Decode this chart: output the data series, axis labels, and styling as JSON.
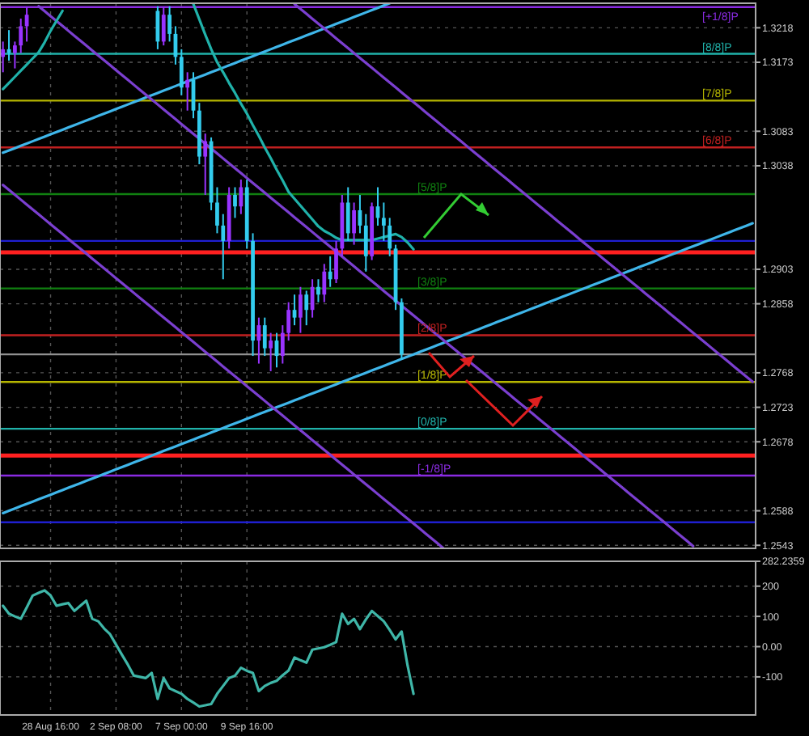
{
  "chart_data": [
    {
      "type": "candlestick",
      "categories": [
        null,
        null,
        null,
        null,
        null,
        null,
        null,
        null,
        null,
        null,
        null,
        null,
        null,
        null,
        null,
        null,
        null,
        null,
        null,
        null,
        null,
        null,
        null,
        null,
        null,
        null,
        null,
        null,
        null,
        null,
        null,
        null,
        null,
        null,
        null,
        null,
        null,
        null,
        null,
        null,
        null,
        null,
        null,
        null,
        null,
        null,
        null,
        null,
        null,
        null,
        null,
        null,
        null,
        null,
        null,
        null,
        null,
        null,
        null,
        null,
        null,
        null,
        null,
        null,
        null,
        null,
        null,
        null,
        null,
        null,
        null,
        null,
        null,
        null,
        null,
        null,
        null,
        null,
        null,
        null,
        null,
        null,
        null,
        null,
        null,
        null,
        null,
        null,
        null,
        null,
        null,
        null,
        null,
        null,
        null,
        null,
        null,
        null,
        null,
        null,
        null,
        null,
        null,
        null,
        null,
        null,
        null,
        null,
        null,
        null,
        null,
        null,
        null,
        null,
        null,
        null,
        null,
        null,
        null,
        null,
        null,
        null,
        null,
        null,
        null,
        null,
        null
      ],
      "ohlc": [
        [
          1.318,
          1.32,
          1.316,
          1.319
        ],
        [
          1.319,
          1.3215,
          1.3175,
          1.3185
        ],
        [
          1.3185,
          1.32,
          1.3165,
          1.3195
        ],
        [
          1.3195,
          1.323,
          1.3185,
          1.322
        ],
        [
          1.322,
          1.3245,
          1.32,
          1.3235
        ],
        null,
        null,
        null,
        null,
        null,
        null,
        null,
        null,
        null,
        null,
        null,
        null,
        null,
        null,
        null,
        null,
        null,
        null,
        null,
        null,
        null,
        [
          1.324,
          1.3246,
          1.319,
          1.32
        ],
        [
          1.32,
          1.3245,
          1.3195,
          1.3235
        ],
        [
          1.3235,
          1.3246,
          1.32,
          1.321
        ],
        [
          1.321,
          1.322,
          1.317,
          1.318
        ],
        [
          1.318,
          1.319,
          1.313,
          1.314
        ],
        [
          1.314,
          1.316,
          1.311,
          1.315
        ],
        [
          1.315,
          1.316,
          1.31,
          1.311
        ],
        [
          1.311,
          1.312,
          1.304,
          1.305
        ],
        [
          1.305,
          1.308,
          1.3,
          1.307
        ],
        [
          1.307,
          1.3075,
          1.298,
          1.299
        ],
        [
          1.299,
          1.301,
          1.295,
          1.296
        ],
        [
          1.296,
          1.2975,
          1.289,
          1.294
        ],
        [
          1.294,
          1.301,
          1.293,
          1.3
        ],
        [
          1.3,
          1.301,
          1.297,
          1.2985
        ],
        [
          1.2985,
          1.302,
          1.2975,
          1.301
        ],
        [
          1.301,
          1.302,
          1.293,
          1.294
        ],
        [
          1.294,
          1.295,
          1.279,
          1.281
        ],
        [
          1.281,
          1.284,
          1.278,
          1.283
        ],
        [
          1.283,
          1.284,
          1.279,
          1.28
        ],
        [
          1.28,
          1.282,
          1.277,
          1.281
        ],
        [
          1.281,
          1.282,
          1.2775,
          1.279
        ],
        [
          1.279,
          1.283,
          1.278,
          1.282
        ],
        [
          1.282,
          1.286,
          1.281,
          1.285
        ],
        [
          1.285,
          1.287,
          1.283,
          1.284
        ],
        [
          1.284,
          1.288,
          1.282,
          1.287
        ],
        [
          1.287,
          1.2875,
          1.283,
          1.285
        ],
        [
          1.285,
          1.289,
          1.284,
          1.288
        ],
        [
          1.288,
          1.289,
          1.286,
          1.287
        ],
        [
          1.287,
          1.291,
          1.286,
          1.29
        ],
        [
          1.29,
          1.292,
          1.288,
          1.289
        ],
        [
          1.289,
          1.294,
          1.2885,
          1.293
        ],
        [
          1.293,
          1.3,
          1.292,
          1.299
        ],
        [
          1.299,
          1.301,
          1.294,
          1.295
        ],
        [
          1.295,
          1.299,
          1.2935,
          1.298
        ],
        [
          1.298,
          1.3,
          1.295,
          1.296
        ],
        [
          1.296,
          1.2975,
          1.29,
          1.292
        ],
        [
          1.292,
          1.299,
          1.2915,
          1.2985
        ],
        [
          1.2985,
          1.301,
          1.296,
          1.297
        ],
        [
          1.297,
          1.299,
          1.294,
          1.296
        ],
        [
          1.296,
          1.297,
          1.292,
          1.293
        ],
        [
          1.293,
          1.2935,
          1.285,
          1.286
        ],
        [
          1.286,
          1.2865,
          1.2785,
          1.2792
        ],
        null,
        null,
        null,
        null,
        null,
        null,
        null,
        null,
        null,
        null,
        null,
        null,
        null,
        null,
        null,
        null,
        null,
        null,
        null,
        null,
        null,
        null,
        null,
        null,
        null,
        null,
        null,
        null,
        null,
        null,
        null,
        null,
        null,
        null,
        null,
        null,
        null,
        null,
        null,
        null,
        null,
        null,
        null,
        null,
        null,
        null,
        null,
        null,
        null,
        null,
        null,
        null,
        null,
        null,
        null,
        null,
        null,
        null,
        null
      ],
      "colors": [
        "#9933ff",
        "#33ccee",
        "#9933ff",
        "#9933ff",
        "#9933ff",
        null,
        null,
        null,
        null,
        null,
        null,
        null,
        null,
        null,
        null,
        null,
        null,
        null,
        null,
        null,
        null,
        null,
        null,
        null,
        null,
        null,
        "#33ccee",
        "#9933ff",
        "#33ccee",
        "#33ccee",
        "#33ccee",
        "#9933ff",
        "#33ccee",
        "#33ccee",
        "#9933ff",
        "#33ccee",
        "#33ccee",
        "#33ccee",
        "#9933ff",
        "#33ccee",
        "#9933ff",
        "#33ccee",
        "#33ccee",
        "#9933ff",
        "#33ccee",
        "#9933ff",
        "#33ccee",
        "#9933ff",
        "#9933ff",
        "#33ccee",
        "#9933ff",
        "#33ccee",
        "#9933ff",
        "#33ccee",
        "#9933ff",
        "#33ccee",
        "#9933ff",
        "#9933ff",
        "#33ccee",
        "#9933ff",
        "#33ccee",
        "#33ccee",
        "#9933ff",
        "#33ccee",
        "#33ccee",
        "#33ccee",
        "#33ccee",
        "#33ccee",
        null,
        null,
        null,
        null,
        null,
        null,
        null,
        null,
        null,
        null,
        null,
        null,
        null,
        null,
        null,
        null,
        null,
        null,
        null,
        null,
        null,
        null,
        null,
        null,
        null,
        null,
        null,
        null,
        null,
        null,
        null,
        null,
        null,
        null,
        null,
        null,
        null,
        null,
        null,
        null,
        null,
        null,
        null,
        null,
        null,
        null,
        null,
        null,
        null,
        null,
        null,
        null,
        null,
        null,
        null,
        null,
        null,
        null,
        null
      ],
      "series": [
        {
          "type": "line",
          "color": "#3fb6ea",
          "values": [
            1.3055,
            1.3058,
            1.3061,
            1.3064,
            1.3067,
            1.307,
            1.3073,
            1.3076,
            1.3079,
            1.3082,
            1.3085,
            1.3088,
            1.3091,
            1.3094,
            1.3097,
            1.31,
            1.3103,
            1.3106,
            1.3109,
            1.3112,
            1.3115,
            1.3118,
            1.3121,
            1.3124,
            1.3127,
            1.313,
            1.3133,
            1.3136,
            1.3139,
            1.3142,
            1.3145,
            1.3148,
            1.3151,
            1.3154,
            1.3157,
            1.316,
            1.3163,
            1.3166,
            1.3169,
            1.3172,
            1.3175,
            1.3178,
            1.3181,
            1.3184,
            1.3187,
            1.319,
            1.3193,
            1.3196,
            1.3199,
            1.3202,
            1.3205,
            1.3208,
            1.3211,
            1.3214,
            1.3217,
            1.322,
            1.3223,
            1.3226,
            1.3229,
            1.3232,
            1.3235,
            1.3238,
            1.3241,
            1.3244,
            1.3247,
            1.325,
            null,
            null,
            null,
            null,
            null,
            null,
            null,
            null,
            null,
            null,
            null,
            null,
            null,
            null,
            null,
            null,
            null,
            null,
            null,
            null,
            null,
            null,
            null,
            null,
            null,
            null,
            null,
            null,
            null,
            null,
            null,
            null,
            null,
            null,
            null,
            null,
            null,
            null,
            null,
            null,
            null,
            null,
            null,
            null,
            null,
            null,
            null,
            null,
            null,
            null,
            null,
            null,
            null,
            null,
            null,
            null,
            null,
            null,
            null,
            null,
            null
          ]
        },
        {
          "type": "line",
          "color": "#3fb6ea",
          "values": [
            1.2585,
            1.2588,
            1.2591,
            1.2594,
            1.2597,
            1.26,
            1.2603,
            1.2606,
            1.2609,
            1.2612,
            1.2615,
            1.2618,
            1.2621,
            1.2624,
            1.2627,
            1.263,
            1.2633,
            1.2636,
            1.2639,
            1.2642,
            1.2645,
            1.2648,
            1.2651,
            1.2654,
            1.2657,
            1.266,
            1.2663,
            1.2666,
            1.2669,
            1.2672,
            1.2675,
            1.2678,
            1.2681,
            1.2684,
            1.2687,
            1.269,
            1.2693,
            1.2696,
            1.2699,
            1.2702,
            1.2705,
            1.2708,
            1.2711,
            1.2714,
            1.2717,
            1.272,
            1.2723,
            1.2726,
            1.2729,
            1.2732,
            1.2735,
            1.2738,
            1.2741,
            1.2744,
            1.2747,
            1.275,
            1.2753,
            1.2756,
            1.2759,
            1.2762,
            1.2765,
            1.2768,
            1.2771,
            1.2774,
            1.2777,
            1.278,
            1.2783,
            1.2786,
            1.2789,
            1.2792,
            1.2795,
            1.2798,
            1.2801,
            1.2804,
            1.2807,
            1.281,
            1.2813,
            1.2816,
            1.2819,
            1.2822,
            1.2825,
            1.2828,
            1.2831,
            1.2834,
            1.2837,
            1.284,
            1.2843,
            1.2846,
            1.2849,
            1.2852,
            1.2855,
            1.2858,
            1.2861,
            1.2864,
            1.2867,
            1.287,
            1.2873,
            1.2876,
            1.2879,
            1.2882,
            1.2885,
            1.2888,
            1.2891,
            1.2894,
            1.2897,
            1.29,
            1.2903,
            1.2906,
            1.2909,
            1.2912,
            1.2915,
            1.2918,
            1.2921,
            1.2924,
            1.2927,
            1.293,
            1.2933,
            1.2936,
            1.2939,
            1.2942,
            1.2945,
            1.2948,
            1.2951,
            1.2954,
            1.2957,
            1.296,
            1.2963
          ]
        },
        {
          "type": "line",
          "color": "#7b3fd0",
          "values": [
            null,
            null,
            null,
            null,
            null,
            null,
            null,
            null,
            null,
            null,
            null,
            null,
            null,
            null,
            null,
            null,
            null,
            null,
            null,
            null,
            null,
            null,
            null,
            null,
            null,
            null,
            null,
            null,
            null,
            null,
            null,
            null,
            null,
            null,
            null,
            null,
            null,
            null,
            null,
            null,
            null,
            null,
            null,
            null,
            null,
            null,
            null,
            null,
            null,
            1.3249,
            1.32426,
            1.32362,
            1.32298,
            1.32234,
            1.3217,
            1.32106,
            1.32042,
            1.31978,
            1.31914,
            1.3185,
            1.31786,
            1.31722,
            1.31658,
            1.31594,
            1.3153,
            1.31466,
            1.31402,
            1.31338,
            1.31274,
            1.3121,
            1.31146,
            1.31082,
            1.31018,
            1.30954,
            1.3089,
            1.30826,
            1.30762,
            1.30698,
            1.30634,
            1.3057,
            1.30506,
            1.30442,
            1.30378,
            1.30314,
            1.3025,
            1.30186,
            1.30122,
            1.30058,
            1.29994,
            1.2993,
            1.29866,
            1.29802,
            1.29738,
            1.29674,
            1.2961,
            1.29546,
            1.29482,
            1.29418,
            1.29354,
            1.2929,
            1.29226,
            1.29162,
            1.29098,
            1.29034,
            1.2897,
            1.28906,
            1.28842,
            1.28778,
            1.28714,
            1.2865,
            1.28586,
            1.28522,
            1.28458,
            1.28394,
            1.2833,
            1.28266,
            1.28202,
            1.28138,
            1.28074,
            1.2801,
            1.27946,
            1.27882,
            1.27818,
            1.27754,
            1.2769,
            1.27626,
            1.27562
          ]
        },
        {
          "type": "line",
          "color": "#7b3fd0",
          "values": [
            null,
            null,
            null,
            null,
            null,
            null,
            1.3246,
            1.32396,
            1.32332,
            1.32268,
            1.32204,
            1.3214,
            1.32076,
            1.32012,
            1.31948,
            1.31884,
            1.3182,
            1.31756,
            1.31692,
            1.31628,
            1.31564,
            1.315,
            1.31436,
            1.31372,
            1.31308,
            1.31244,
            1.3118,
            1.31116,
            1.31052,
            1.30988,
            1.30924,
            1.3086,
            1.30796,
            1.30732,
            1.30668,
            1.30604,
            1.3054,
            1.30476,
            1.30412,
            1.30348,
            1.30284,
            1.3022,
            1.30156,
            1.30092,
            1.30028,
            1.29964,
            1.299,
            1.29836,
            1.29772,
            1.29708,
            1.29644,
            1.2958,
            1.29516,
            1.29452,
            1.29388,
            1.29324,
            1.2926,
            1.29196,
            1.29132,
            1.29068,
            1.29004,
            1.2894,
            1.28876,
            1.28812,
            1.28748,
            1.28684,
            1.2862,
            1.28556,
            1.28492,
            1.28428,
            1.28364,
            1.283,
            1.28236,
            1.28172,
            1.28108,
            1.28044,
            1.2798,
            1.27916,
            1.27852,
            1.27788,
            1.27724,
            1.2766,
            1.27596,
            1.27532,
            1.27468,
            1.27404,
            1.2734,
            1.27276,
            1.27212,
            1.27148,
            1.27084,
            1.2702,
            1.26956,
            1.26892,
            1.26828,
            1.26764,
            1.267,
            1.26636,
            1.26572,
            1.26508,
            1.26444,
            1.2638,
            1.26316,
            1.26252,
            1.26188,
            1.26124,
            1.2606,
            1.25996,
            1.25932,
            1.25868,
            1.25804,
            1.2574,
            1.25676,
            1.25612,
            1.25548,
            1.25484,
            1.2542,
            null,
            null,
            null,
            null,
            null,
            null,
            null,
            null,
            null,
            null
          ]
        },
        {
          "type": "line",
          "color": "#7b3fd0",
          "values": [
            1.3013,
            1.30066,
            1.30002,
            1.29938,
            1.29874,
            1.2981,
            1.29746,
            1.29682,
            1.29618,
            1.29554,
            1.2949,
            1.29426,
            1.29362,
            1.29298,
            1.29234,
            1.2917,
            1.29106,
            1.29042,
            1.28978,
            1.28914,
            1.2885,
            1.28786,
            1.28722,
            1.28658,
            1.28594,
            1.2853,
            1.28466,
            1.28402,
            1.28338,
            1.28274,
            1.2821,
            1.28146,
            1.28082,
            1.28018,
            1.27954,
            1.2789,
            1.27826,
            1.27762,
            1.27698,
            1.27634,
            1.2757,
            1.27506,
            1.27442,
            1.27378,
            1.27314,
            1.2725,
            1.27186,
            1.27122,
            1.27058,
            1.26994,
            1.2693,
            1.26866,
            1.26802,
            1.26738,
            1.26674,
            1.2661,
            1.26546,
            1.26482,
            1.26418,
            1.26354,
            1.2629,
            1.26226,
            1.26162,
            1.26098,
            1.26034,
            1.2597,
            1.25906,
            1.25842,
            1.25778,
            1.25714,
            1.2565,
            1.25586,
            1.25522,
            1.25458,
            1.25394,
            null,
            null,
            null,
            null,
            null,
            null,
            null,
            null,
            null,
            null,
            null,
            null,
            null,
            null,
            null,
            null,
            null,
            null,
            null,
            null,
            null,
            null,
            null,
            null,
            null,
            null,
            null,
            null,
            null,
            null,
            null,
            null,
            null,
            null,
            null,
            null,
            null,
            null,
            null,
            null,
            null,
            null,
            null,
            null,
            null,
            null,
            null,
            null,
            null,
            null,
            null,
            null
          ]
        },
        {
          "type": "line",
          "color": "#20b2aa",
          "values": [
            1.3138,
            1.3146,
            1.3154,
            1.3162,
            1.317,
            1.3178,
            1.3186,
            1.3199,
            1.3214,
            1.3227,
            1.324,
            null,
            null,
            null,
            null,
            null,
            null,
            null,
            null,
            null,
            null,
            null,
            null,
            null,
            null,
            null,
            null,
            null,
            null,
            null,
            null,
            null,
            1.3249,
            1.3229,
            1.3209,
            1.319,
            1.3173,
            1.316,
            1.3146,
            1.3133,
            1.3119,
            1.3106,
            1.3091,
            1.3077,
            1.3062,
            1.3048,
            1.3033,
            1.3019,
            1.3004,
            1.2995,
            1.2986,
            1.2977,
            1.2968,
            1.2959,
            1.2953,
            1.2949,
            1.2944,
            1.2941,
            1.2941,
            1.2941,
            1.2941,
            1.2941,
            1.2941,
            1.2943,
            1.2945,
            1.2947,
            1.2949,
            1.2945,
            1.2938,
            1.2929,
            null,
            null,
            null,
            null,
            null,
            null,
            null,
            null,
            null,
            null,
            null,
            null,
            null,
            null,
            null,
            null,
            null,
            null,
            null,
            null,
            null,
            null,
            null,
            null,
            null,
            null,
            null,
            null,
            null,
            null,
            null,
            null,
            null,
            null,
            null,
            null,
            null,
            null,
            null,
            null,
            null,
            null,
            null,
            null,
            null,
            null,
            null,
            null,
            null,
            null,
            null,
            null,
            null,
            null,
            null,
            null,
            null
          ]
        }
      ],
      "ref_lines": [
        {
          "axis": "y",
          "value": 1.3245,
          "label": "[+1/8]P",
          "color": "#8a2be2"
        },
        {
          "axis": "y",
          "value": 1.3184,
          "label": "[8/8]P",
          "color": "#20b2aa"
        },
        {
          "axis": "y",
          "value": 1.3123,
          "label": "[7/8]P",
          "color": "#b5b500"
        },
        {
          "axis": "y",
          "value": 1.3062,
          "label": "[6/8]P",
          "color": "#c02020"
        },
        {
          "axis": "y",
          "value": 1.3001,
          "label": "[5/8]P",
          "color": "#108010"
        },
        {
          "axis": "y",
          "value": 1.294,
          "color": "#1f1fd0"
        },
        {
          "axis": "y",
          "value": 1.2925,
          "color": "#ff2020"
        },
        {
          "axis": "y",
          "value": 1.2878,
          "label": "[3/8]P",
          "color": "#108010"
        },
        {
          "axis": "y",
          "value": 1.2817,
          "label": "[2/8]P",
          "color": "#c02020"
        },
        {
          "axis": "y",
          "value": 1.2792,
          "color": "#909090"
        },
        {
          "axis": "y",
          "value": 1.2756,
          "label": "[1/8]P",
          "color": "#b5b500"
        },
        {
          "axis": "y",
          "value": 1.2695,
          "label": "[0/8]P",
          "color": "#20b2aa"
        },
        {
          "axis": "y",
          "value": 1.266,
          "color": "#ff2020"
        },
        {
          "axis": "y",
          "value": 1.2634,
          "label": "[-1/8]P",
          "color": "#8a2be2"
        },
        {
          "axis": "y",
          "value": 1.2573,
          "color": "#1f1fd0"
        }
      ],
      "ylim": [
        1.2539,
        1.325
      ],
      "yticks": [
        1.3218,
        1.3173,
        1.3083,
        1.3038,
        1.2903,
        1.2858,
        1.2768,
        1.2723,
        1.2678,
        1.2588,
        1.2543
      ],
      "tick_labels": "y",
      "grid": true
    },
    {
      "type": "line",
      "color": "#3fb6a8",
      "categories": [
        null,
        null,
        null,
        null,
        null,
        null,
        null,
        null,
        "28 Aug 16:00",
        null,
        null,
        null,
        null,
        null,
        null,
        null,
        null,
        null,
        null,
        "2 Sep 08:00",
        null,
        null,
        null,
        null,
        null,
        null,
        null,
        null,
        null,
        null,
        "7 Sep 00:00",
        null,
        null,
        null,
        null,
        null,
        null,
        null,
        null,
        null,
        null,
        "9 Sep 16:00",
        null,
        null,
        null,
        null,
        null,
        null,
        null,
        null,
        null,
        null,
        null,
        null,
        null,
        null,
        null,
        null,
        null,
        null,
        null,
        null,
        null,
        null,
        null,
        null,
        null,
        null,
        null,
        null,
        null,
        null,
        null,
        null,
        null,
        null,
        null,
        null,
        null,
        null,
        null,
        null,
        null,
        null,
        null,
        null,
        null,
        null,
        null,
        null,
        null,
        null,
        null,
        null,
        null,
        null,
        null,
        null,
        null,
        null,
        null,
        null,
        null,
        null,
        null,
        null,
        null,
        null,
        null,
        null,
        null,
        null,
        null,
        null,
        null,
        null,
        null,
        null,
        null,
        null,
        null,
        null,
        null,
        null,
        null,
        null,
        null
      ],
      "values": [
        135,
        109,
        100,
        92,
        130,
        169,
        178,
        186,
        169,
        135,
        140,
        144,
        118,
        135,
        152,
        92,
        84,
        60,
        41,
        7,
        -27,
        -60,
        -96,
        -100,
        -104,
        -87,
        -173,
        -104,
        -138,
        -147,
        -156,
        -173,
        -185,
        -198,
        -194,
        -190,
        -156,
        -130,
        -104,
        -96,
        -70,
        -80,
        -87,
        -147,
        -130,
        -120,
        -113,
        -95,
        -79,
        -36,
        -45,
        -53,
        -10,
        -6,
        -2,
        6,
        15,
        109,
        75,
        92,
        58,
        90,
        118,
        101,
        84,
        55,
        24,
        50,
        -62,
        -156,
        null,
        null,
        null,
        null,
        null,
        null,
        null,
        null,
        null,
        null,
        null,
        null,
        null,
        null,
        null,
        null,
        null,
        null,
        null,
        null,
        null,
        null,
        null,
        null,
        null,
        null,
        null,
        null,
        null,
        null,
        null,
        null,
        null,
        null,
        null,
        null,
        null,
        null,
        null,
        null,
        null,
        null,
        null,
        null,
        null,
        null,
        null,
        null,
        null,
        null,
        null,
        null,
        null,
        null,
        null,
        null,
        null
      ],
      "ylim": [
        -226,
        282.2359
      ],
      "yticks": [
        282.2359,
        200,
        100,
        {
          "value": 0,
          "label": "0.00"
        },
        -100
      ],
      "grid": true
    }
  ]
}
